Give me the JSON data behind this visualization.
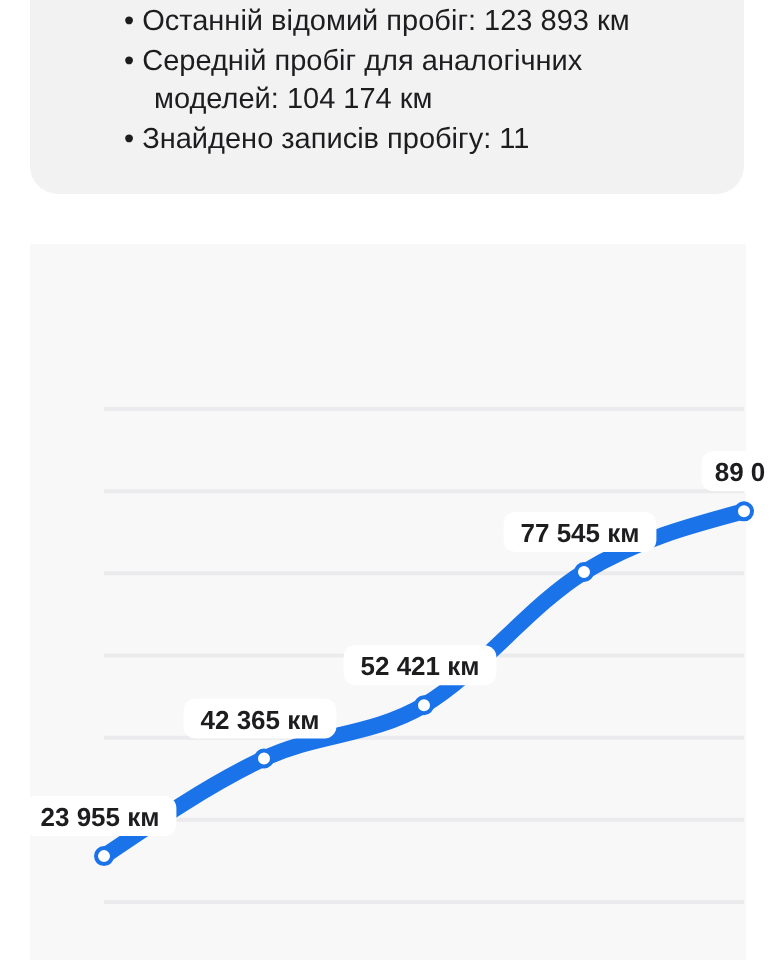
{
  "chart_data": {
    "type": "line",
    "annotations": [
      "• Останній відомий пробіг: 123 893 км",
      "• Середній пробіг для аналогічних моделей: 104 174 км",
      "• Знайдено записів пробігу: 11",
      {
        "text": "89 0",
        "y": 89000
      }
    ],
    "categories": [
      null,
      null,
      null,
      null,
      null
    ],
    "series": [
      {
        "color": "#1a73e8",
        "values": [
          23955,
          42365,
          52421,
          77545,
          89000
        ],
        "value_labels": [
          "23 955 км",
          "42 365 км",
          "52 421 км",
          "77 545 км",
          null
        ]
      }
    ],
    "ylim": [
      15300,
      108300
    ],
    "yticks": [
      {
        "value": 15300,
        "label": null
      },
      {
        "value": 30800,
        "label": null
      },
      {
        "value": 46300,
        "label": null
      },
      {
        "value": 61800,
        "label": null
      },
      {
        "value": 77300,
        "label": null
      },
      {
        "value": 92800,
        "label": null
      },
      {
        "value": 108300,
        "label": null
      }
    ],
    "grid": "y",
    "marker": "circle",
    "line_style": "solid"
  }
}
